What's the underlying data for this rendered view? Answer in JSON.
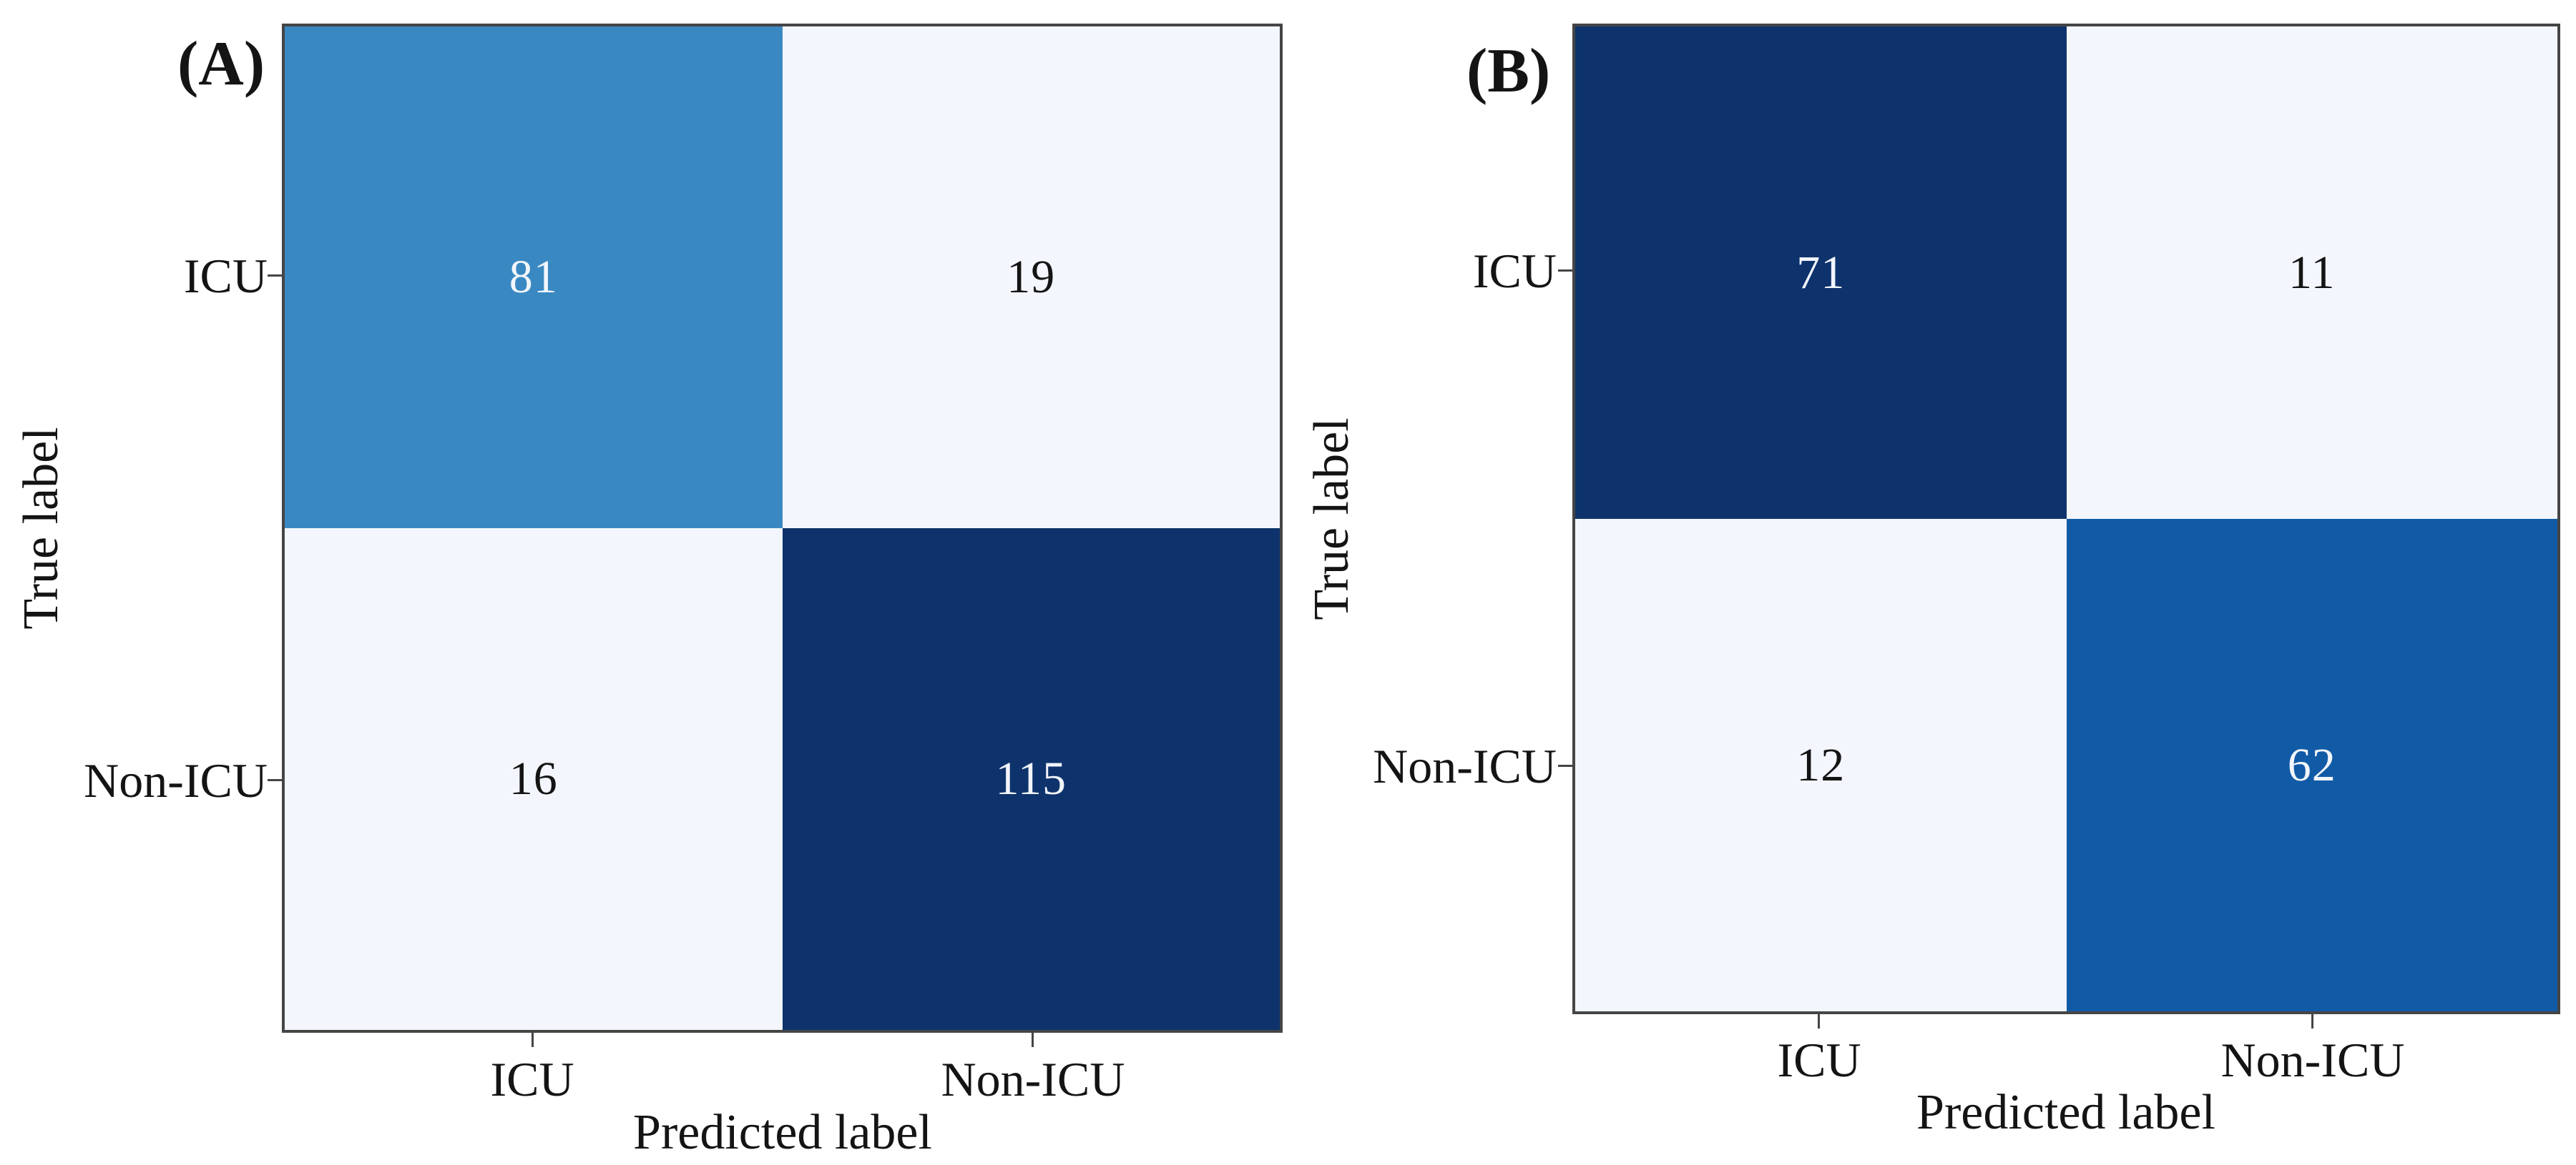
{
  "chart_data": [
    {
      "type": "heatmap",
      "panel_label": "(A)",
      "xlabel": "Predicted label",
      "ylabel": "True label",
      "x_ticklabels": [
        "ICU",
        "Non-ICU"
      ],
      "y_ticklabels": [
        "ICU",
        "Non-ICU"
      ],
      "values": [
        [
          81,
          19
        ],
        [
          16,
          115
        ]
      ],
      "value_min": 16,
      "value_max": 115,
      "colormap": "Blues",
      "cells": [
        {
          "row": "ICU",
          "col": "ICU",
          "value": 81,
          "bg": "#3a88c2",
          "fg": "#f2f5fa"
        },
        {
          "row": "ICU",
          "col": "Non-ICU",
          "value": 19,
          "bg": "#f3f6fc",
          "fg": "#141414"
        },
        {
          "row": "Non-ICU",
          "col": "ICU",
          "value": 16,
          "bg": "#f3f6fc",
          "fg": "#141414"
        },
        {
          "row": "Non-ICU",
          "col": "Non-ICU",
          "value": 115,
          "bg": "#0e336c",
          "fg": "#f2f5fa"
        }
      ]
    },
    {
      "type": "heatmap",
      "panel_label": "(B)",
      "xlabel": "Predicted label",
      "ylabel": "True label",
      "x_ticklabels": [
        "ICU",
        "Non-ICU"
      ],
      "y_ticklabels": [
        "ICU",
        "Non-ICU"
      ],
      "values": [
        [
          71,
          11
        ],
        [
          12,
          62
        ]
      ],
      "value_min": 11,
      "value_max": 71,
      "colormap": "Blues",
      "cells": [
        {
          "row": "ICU",
          "col": "ICU",
          "value": 71,
          "bg": "#0e336c",
          "fg": "#f2f5fa"
        },
        {
          "row": "ICU",
          "col": "Non-ICU",
          "value": 11,
          "bg": "#f3f6fc",
          "fg": "#141414"
        },
        {
          "row": "Non-ICU",
          "col": "ICU",
          "value": 12,
          "bg": "#f3f6fc",
          "fg": "#141414"
        },
        {
          "row": "Non-ICU",
          "col": "Non-ICU",
          "value": 62,
          "bg": "#115aa6",
          "fg": "#f2f5fa"
        }
      ]
    }
  ],
  "style": {
    "spine_color": "#454545",
    "background": "#ffffff"
  }
}
